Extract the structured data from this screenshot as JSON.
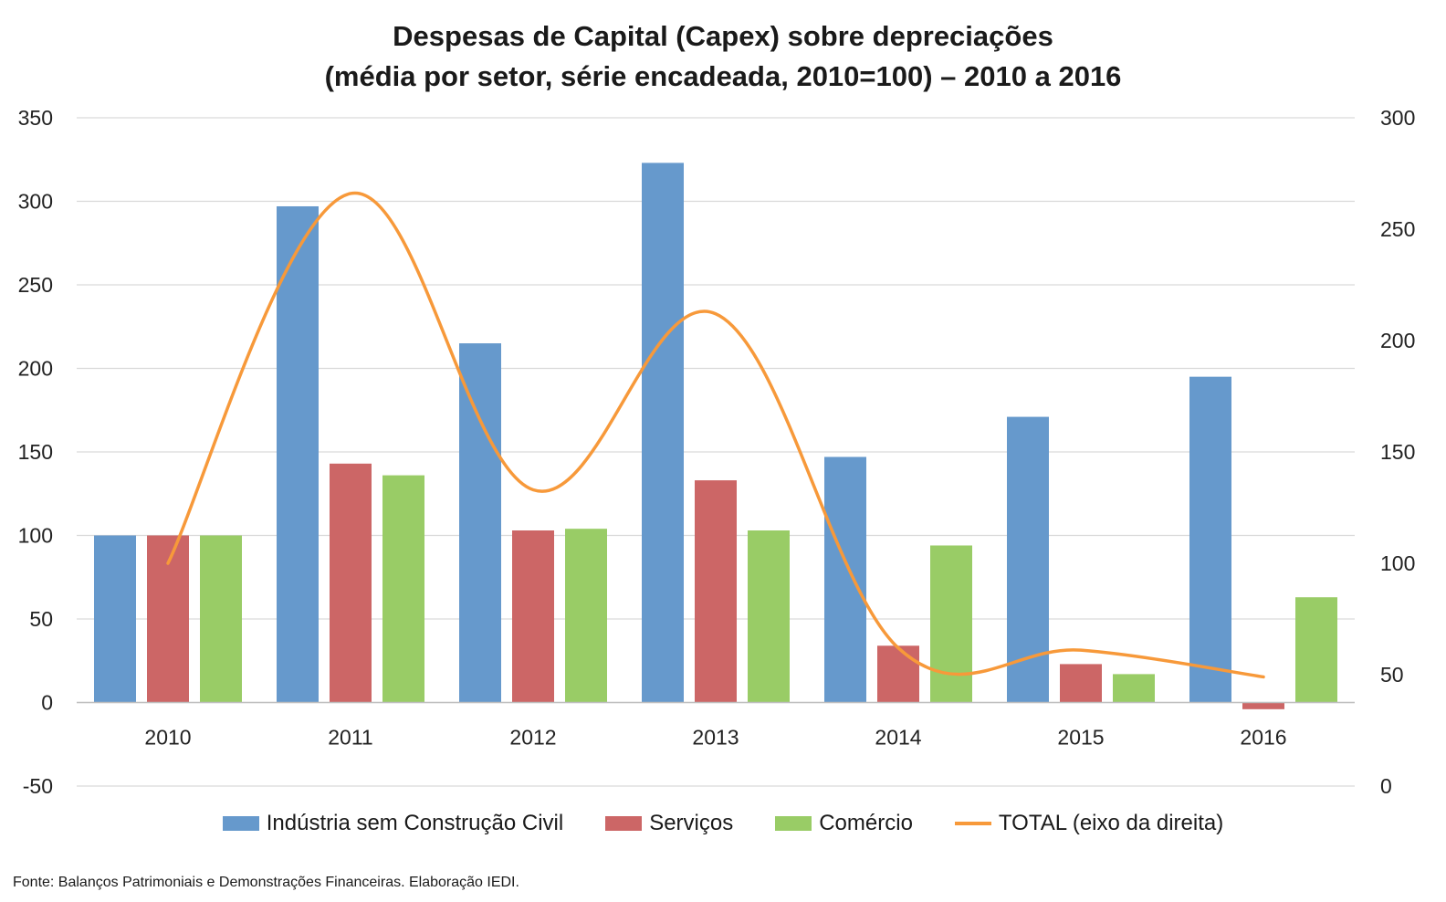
{
  "title_line1": "Despesas de Capital (Capex) sobre depreciações",
  "title_line2": "(média por setor, série encadeada, 2010=100) – 2010 a 2016",
  "source": "Fonte: Balanços Patrimoniais e Demonstrações Financeiras. Elaboração IEDI.",
  "chart_data": {
    "type": "bar",
    "categories": [
      "2010",
      "2011",
      "2012",
      "2013",
      "2014",
      "2015",
      "2016"
    ],
    "series": [
      {
        "name": "Indústria sem Construção Civil",
        "type": "bar",
        "axis": "left",
        "color": "#6699cc",
        "values": [
          100,
          297,
          215,
          323,
          147,
          171,
          195
        ]
      },
      {
        "name": "Serviços",
        "type": "bar",
        "axis": "left",
        "color": "#cc6666",
        "values": [
          100,
          143,
          103,
          133,
          34,
          23,
          -4
        ]
      },
      {
        "name": "Comércio",
        "type": "bar",
        "axis": "left",
        "color": "#99cc66",
        "values": [
          100,
          136,
          104,
          103,
          94,
          17,
          63
        ]
      },
      {
        "name": "TOTAL (eixo da direita)",
        "type": "line",
        "axis": "right",
        "color": "#f7993a",
        "values": [
          100,
          266,
          133,
          212,
          62,
          61,
          49
        ]
      }
    ],
    "y_left": {
      "min": -50,
      "max": 350,
      "ticks": [
        "350",
        "300",
        "250",
        "200",
        "150",
        "100",
        "50",
        "0",
        "-50"
      ]
    },
    "y_right": {
      "min": 0,
      "max": 300,
      "ticks": [
        "300",
        "250",
        "200",
        "150",
        "100",
        "50",
        "0"
      ]
    },
    "grid": true,
    "legend_position": "bottom"
  }
}
